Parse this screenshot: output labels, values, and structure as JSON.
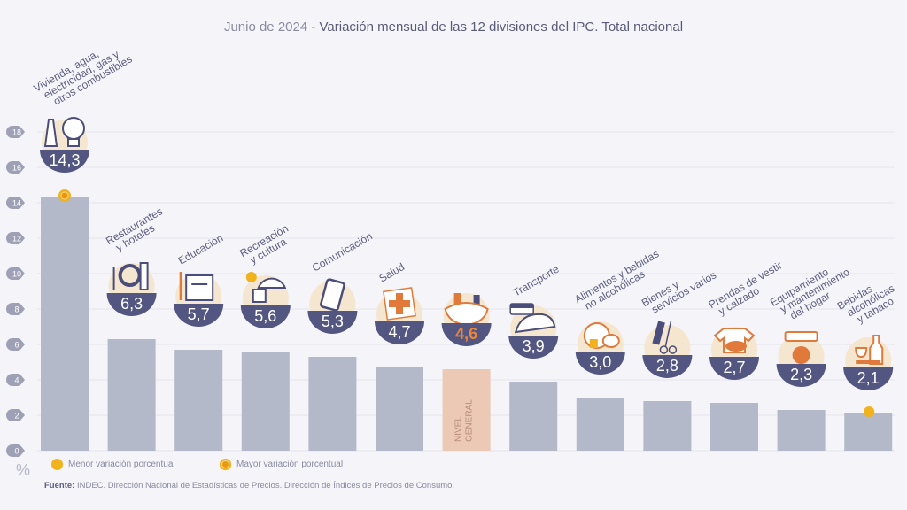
{
  "title": {
    "date": "Junio de 2024",
    "separator": "-",
    "text": "Variación mensual de las 12 divisiones del IPC. Total nacional"
  },
  "chart_data": {
    "type": "bar",
    "title": "Junio de 2024 - Variación mensual de las 12 divisiones del IPC. Total nacional",
    "ylabel": "%",
    "xlabel": "",
    "ylim": [
      0,
      18
    ],
    "yticks": [
      0,
      2,
      4,
      6,
      8,
      10,
      12,
      14,
      16,
      18
    ],
    "grid": true,
    "categories": [
      "Vivienda, agua, electricidad, gas y otros combustibles",
      "Restaurantes y hoteles",
      "Educación",
      "Recreación y cultura",
      "Comunicación",
      "Salud",
      "Nivel general",
      "Transporte",
      "Alimentos y bebidas no alcohólicas",
      "Bienes y servicios varios",
      "Prendas de vestir y calzado",
      "Equipamiento y mantenimiento del hogar",
      "Bebidas alcohólicas y tabaco"
    ],
    "label_lines": [
      [
        "Vivienda, agua,",
        "electricidad, gas y",
        "otros combustibles"
      ],
      [
        "Restaurantes",
        "y hoteles"
      ],
      [
        "Educación"
      ],
      [
        "Recreación",
        "y cultura"
      ],
      [
        "Comunicación"
      ],
      [
        "Salud"
      ],
      [],
      [
        "Transporte"
      ],
      [
        "Alimentos y bebidas",
        "no alcohólicas"
      ],
      [
        "Bienes y",
        "servicios varios"
      ],
      [
        "Prendas de vestir",
        "y calzado"
      ],
      [
        "Equipamiento",
        "y mantenimiento",
        "del hogar"
      ],
      [
        "Bebidas",
        "alcohólicas",
        "y tabaco"
      ]
    ],
    "values": [
      14.3,
      6.3,
      5.7,
      5.6,
      5.3,
      4.7,
      4.6,
      3.9,
      3.0,
      2.8,
      2.7,
      2.3,
      2.1
    ],
    "value_labels": [
      "14,3",
      "6,3",
      "5,7",
      "5,6",
      "5,3",
      "4,7",
      "4,6",
      "3,9",
      "3,0",
      "2,8",
      "2,7",
      "2,3",
      "2,1"
    ],
    "icons": [
      "house-utilities-icon",
      "restaurant-plate-icon",
      "notebook-icon",
      "umbrella-sun-icon",
      "smartphone-icon",
      "medical-cross-icon",
      "shopping-basket-icon",
      "sube-car-icon",
      "food-chicken-icon",
      "comb-scissors-icon",
      "tshirt-shoe-icon",
      "appliance-icon",
      "wine-bottle-icon"
    ],
    "highlight_index": 6,
    "highlight_label": [
      "NIVEL",
      "GENERAL"
    ],
    "max_index": 0,
    "min_index": 12,
    "colors": {
      "bar": "#b3b9c9",
      "highlight_bar": "#ecc9b5",
      "badge": "#535680",
      "badge_text": "#ffffff",
      "highlight_text": "#e8873a",
      "marker": "#f2b21c",
      "icon_orange": "#e0793a",
      "icon_navy": "#4b4e7a"
    }
  },
  "legend": {
    "min": "Menor variación porcentual",
    "max": "Mayor variación porcentual"
  },
  "axis_unit": "%",
  "source": {
    "label": "Fuente:",
    "text": "INDEC. Dirección Nacional de Estadísticas de Precios. Dirección de Índices de Precios de Consumo."
  }
}
